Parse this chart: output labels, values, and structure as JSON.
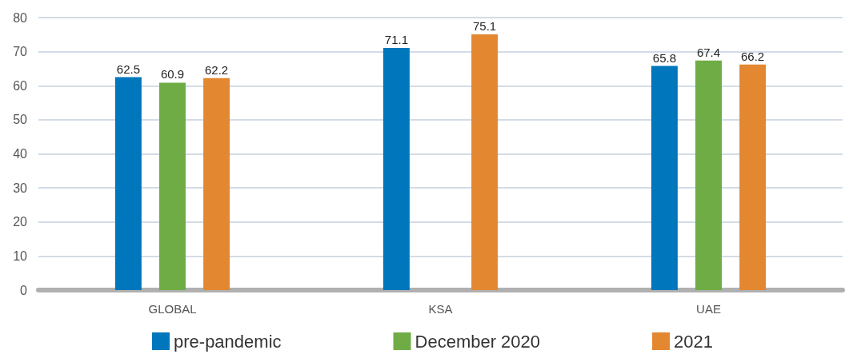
{
  "chart_data": {
    "type": "bar",
    "categories": [
      "GLOBAL",
      "KSA",
      "UAE"
    ],
    "series": [
      {
        "name": "pre-pandemic",
        "color": "#0077bd",
        "values": [
          62.5,
          71.1,
          65.8
        ]
      },
      {
        "name": "December 2020",
        "color": "#6fac46",
        "values": [
          60.9,
          null,
          67.4
        ]
      },
      {
        "name": "2021",
        "color": "#e38831",
        "values": [
          62.2,
          75.1,
          66.2
        ]
      }
    ],
    "ylim": [
      0,
      80
    ],
    "yticks": [
      0,
      10,
      20,
      30,
      40,
      50,
      60,
      70,
      80
    ],
    "grid": "y",
    "legend": "bottom",
    "data_labels": true
  }
}
